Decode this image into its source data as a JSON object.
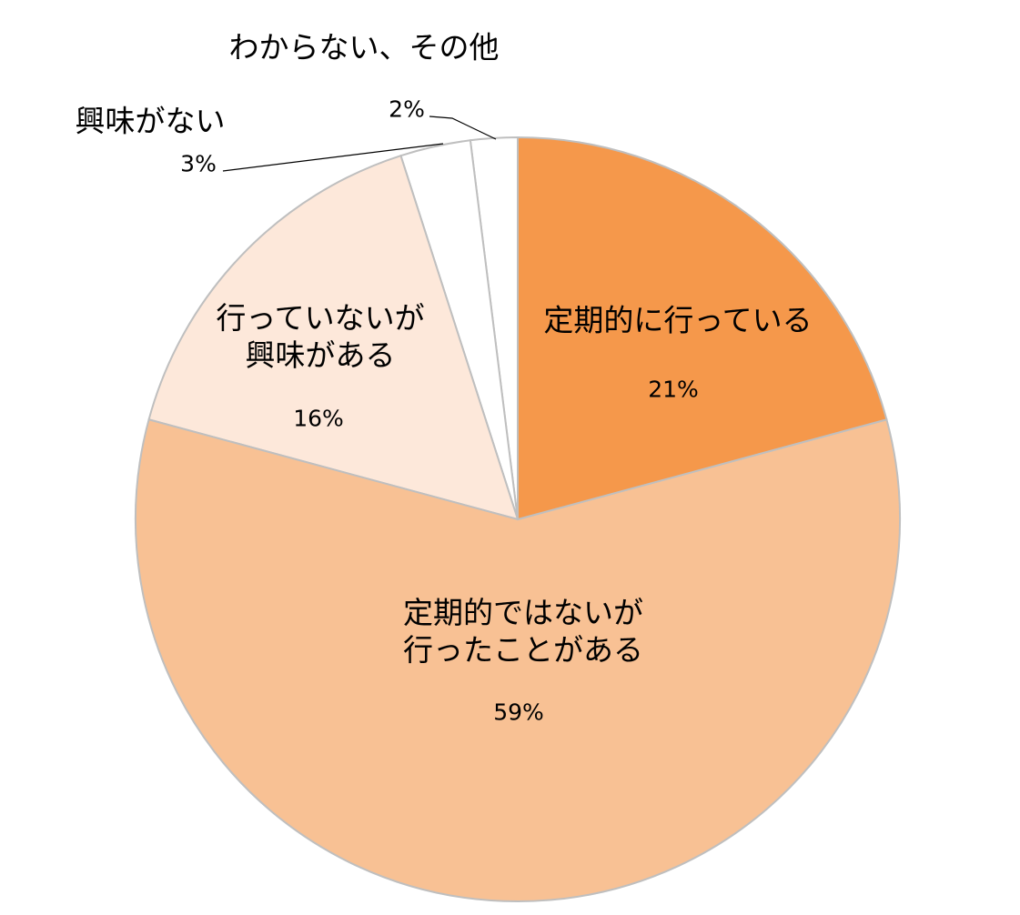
{
  "chart_data": {
    "type": "pie",
    "categories": [
      "定期的に行っている",
      "定期的ではないが\n行ったことがある",
      "行っていないが\n興味がある",
      "興味がない",
      "わからない、その他"
    ],
    "values": [
      21,
      59,
      16,
      3,
      2
    ],
    "value_labels": [
      "21%",
      "59%",
      "16%",
      "3%",
      "2%"
    ],
    "colors": [
      "#f5984b",
      "#f8c194",
      "#fde8da",
      "#ffffff",
      "#ffffff"
    ]
  }
}
